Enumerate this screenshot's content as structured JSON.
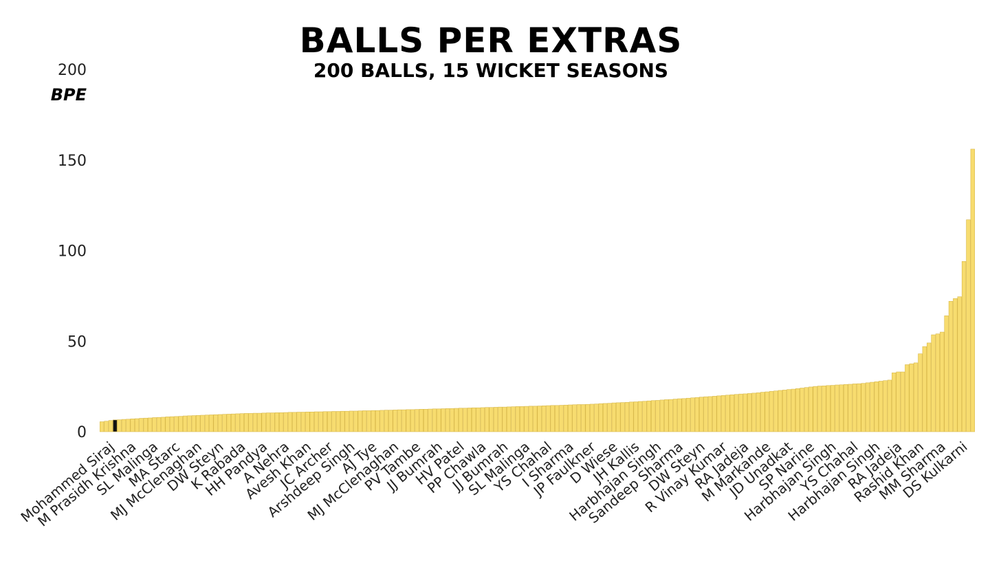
{
  "chart_data": {
    "type": "bar",
    "title": "BALLS PER EXTRAS",
    "subtitle": "200 BALLS, 15 WICKET SEASONS",
    "y_label": "BPE",
    "color": "#f7dc6f",
    "edge_color": "#d8b84a",
    "highlight_index": 3,
    "highlight_color": "#111111",
    "ylim": [
      0,
      200
    ],
    "yticks": [
      0,
      50,
      100,
      150,
      200
    ],
    "grid": false,
    "categories": [
      null,
      null,
      null,
      "Mohammed Siraj",
      null,
      null,
      null,
      null,
      "M Prasidh Krishna",
      null,
      null,
      null,
      null,
      "SL Malinga",
      null,
      null,
      null,
      null,
      "MA Starc",
      null,
      null,
      null,
      null,
      "MJ McClenaghan",
      null,
      null,
      null,
      null,
      "DW Steyn",
      null,
      null,
      null,
      null,
      "K Rabada",
      null,
      null,
      null,
      null,
      "HH Pandya",
      null,
      null,
      null,
      null,
      "A Nehra",
      null,
      null,
      null,
      null,
      "Avesh Khan",
      null,
      null,
      null,
      null,
      "JC Archer",
      null,
      null,
      null,
      null,
      "Arshdeep Singh",
      null,
      null,
      null,
      null,
      "AJ Tye",
      null,
      null,
      null,
      null,
      "MJ McClenaghan",
      null,
      null,
      null,
      null,
      "PV Tambe",
      null,
      null,
      null,
      null,
      "JJ Bumrah",
      null,
      null,
      null,
      null,
      "HV Patel",
      null,
      null,
      null,
      null,
      "PP Chawla",
      null,
      null,
      null,
      null,
      "JJ Bumrah",
      null,
      null,
      null,
      null,
      "SL Malinga",
      null,
      null,
      null,
      null,
      "YS Chahal",
      null,
      null,
      null,
      null,
      "I Sharma",
      null,
      null,
      null,
      null,
      "JP Faulkner",
      null,
      null,
      null,
      null,
      "D Wiese",
      null,
      null,
      null,
      null,
      "JH Kallis",
      null,
      null,
      null,
      null,
      "Harbhajan Singh",
      null,
      null,
      null,
      null,
      "Sandeep Sharma",
      null,
      null,
      null,
      null,
      "DW Steyn",
      null,
      null,
      null,
      null,
      "R Vinay Kumar",
      null,
      null,
      null,
      null,
      "RA Jadeja",
      null,
      null,
      null,
      null,
      "M Markande",
      null,
      null,
      null,
      null,
      "JD Unadkat",
      null,
      null,
      null,
      null,
      "SP Narine",
      null,
      null,
      null,
      null,
      "Harbhajan Singh",
      null,
      null,
      null,
      null,
      "YS Chahal",
      null,
      null,
      null,
      null,
      "Harbhajan Singh",
      null,
      null,
      null,
      null,
      "RA Jadeja",
      null,
      null,
      null,
      null,
      "Rashid Khan",
      null,
      null,
      null,
      null,
      "MM Sharma",
      null,
      null,
      null,
      null,
      "DS Kulkarni",
      null
    ],
    "values": [
      5.5,
      5.8,
      6.2,
      6.5,
      6.6,
      6.8,
      6.9,
      7.1,
      7.2,
      7.4,
      7.5,
      7.6,
      7.8,
      7.9,
      8.0,
      8.2,
      8.3,
      8.4,
      8.5,
      8.7,
      8.8,
      8.9,
      9.0,
      9.1,
      9.2,
      9.3,
      9.4,
      9.5,
      9.6,
      9.7,
      9.8,
      9.9,
      10.0,
      10.1,
      10.1,
      10.2,
      10.2,
      10.3,
      10.4,
      10.4,
      10.5,
      10.5,
      10.6,
      10.7,
      10.7,
      10.8,
      10.8,
      10.9,
      10.9,
      11.0,
      11.0,
      11.1,
      11.1,
      11.2,
      11.2,
      11.3,
      11.3,
      11.4,
      11.4,
      11.5,
      11.6,
      11.6,
      11.7,
      11.7,
      11.8,
      11.9,
      11.9,
      12.0,
      12.1,
      12.1,
      12.2,
      12.2,
      12.3,
      12.4,
      12.4,
      12.5,
      12.6,
      12.6,
      12.7,
      12.8,
      12.8,
      12.9,
      13.0,
      13.0,
      13.1,
      13.2,
      13.2,
      13.3,
      13.4,
      13.4,
      13.5,
      13.6,
      13.6,
      13.7,
      13.8,
      13.9,
      13.9,
      14.0,
      14.1,
      14.1,
      14.2,
      14.3,
      14.4,
      14.5,
      14.5,
      14.6,
      14.7,
      14.8,
      14.9,
      15.0,
      15.0,
      15.1,
      15.2,
      15.3,
      15.5,
      15.6,
      15.7,
      15.9,
      16.0,
      16.1,
      16.2,
      16.4,
      16.5,
      16.7,
      16.8,
      17.0,
      17.2,
      17.3,
      17.5,
      17.7,
      17.8,
      18.0,
      18.2,
      18.3,
      18.5,
      18.7,
      18.9,
      19.1,
      19.3,
      19.4,
      19.6,
      19.8,
      20.0,
      20.2,
      20.4,
      20.6,
      20.8,
      20.9,
      21.1,
      21.3,
      21.5,
      21.8,
      22.0,
      22.3,
      22.5,
      22.8,
      23.0,
      23.3,
      23.5,
      23.8,
      24.1,
      24.4,
      24.7,
      25.0,
      25.2,
      25.3,
      25.5,
      25.6,
      25.8,
      25.9,
      26.1,
      26.2,
      26.4,
      26.5,
      26.7,
      27.0,
      27.3,
      27.6,
      27.9,
      28.2,
      28.5,
      32.5,
      33,
      33,
      37,
      37.5,
      38,
      43,
      47,
      49,
      53.5,
      54,
      55,
      64,
      72,
      73.5,
      74.5,
      94,
      117,
      156
    ]
  }
}
